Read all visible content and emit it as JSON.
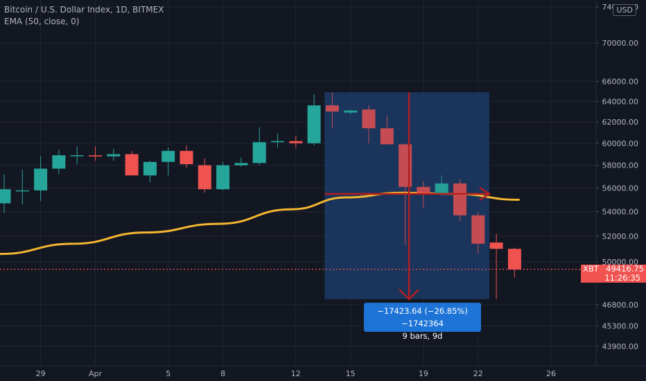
{
  "legend": {
    "symbol": "Bitcoin / U.S. Dollar Index, 1D, BITMEX",
    "indicator": "EMA (50, close, 0)"
  },
  "currency": "USD",
  "last_price": {
    "ticker": "XBT",
    "price": "49416.75",
    "countdown": "11:26:35"
  },
  "measure": {
    "change": "−17423.64 (−26.85%) −1742364",
    "bars": "9 bars, 9d"
  },
  "colors": {
    "background": "#131722",
    "grid": "#232632",
    "up": "#26a69a",
    "down": "#ef5350",
    "ema": "#f5b731",
    "measure_fill": "#1c3a66",
    "arrow": "#b11f1f"
  },
  "chart_data": {
    "type": "candlestick",
    "y_scale": "log",
    "ylim": [
      42600,
      74800
    ],
    "y_ticks": [
      43900,
      45300,
      46800,
      50000,
      52000,
      54000,
      56000,
      58000,
      60000,
      62000,
      64000,
      66000,
      70000,
      74000
    ],
    "y_tick_labels": [
      "43900.00",
      "45300.00",
      "46800.00",
      "50000.00",
      "52000.00",
      "54000.00",
      "56000.00",
      "58000.00",
      "60000.00",
      "62000.00",
      "64000.00",
      "66000.00",
      "70000.00",
      "74000.00"
    ],
    "x_ticks": [
      {
        "label": "29",
        "bar": 2
      },
      {
        "label": "Apr",
        "bar": 5
      },
      {
        "label": "5",
        "bar": 9
      },
      {
        "label": "8",
        "bar": 12
      },
      {
        "label": "12",
        "bar": 16
      },
      {
        "label": "15",
        "bar": 19
      },
      {
        "label": "19",
        "bar": 23
      },
      {
        "label": "22",
        "bar": 26
      },
      {
        "label": "26",
        "bar": 30
      }
    ],
    "candles": [
      {
        "o": 54700,
        "h": 57200,
        "l": 53900,
        "c": 55900
      },
      {
        "o": 55800,
        "h": 57600,
        "l": 54600,
        "c": 55800
      },
      {
        "o": 55800,
        "h": 58800,
        "l": 54900,
        "c": 57700
      },
      {
        "o": 57700,
        "h": 59400,
        "l": 57200,
        "c": 58900
      },
      {
        "o": 58900,
        "h": 59700,
        "l": 58100,
        "c": 58900
      },
      {
        "o": 58900,
        "h": 59700,
        "l": 58400,
        "c": 58800
      },
      {
        "o": 58800,
        "h": 59500,
        "l": 58400,
        "c": 59000
      },
      {
        "o": 59000,
        "h": 59300,
        "l": 57100,
        "c": 57100
      },
      {
        "o": 57100,
        "h": 58400,
        "l": 56500,
        "c": 58300
      },
      {
        "o": 58300,
        "h": 59600,
        "l": 57100,
        "c": 59300
      },
      {
        "o": 59300,
        "h": 59800,
        "l": 57800,
        "c": 58100
      },
      {
        "o": 58000,
        "h": 58600,
        "l": 55600,
        "c": 55900
      },
      {
        "o": 55900,
        "h": 58300,
        "l": 55800,
        "c": 58000
      },
      {
        "o": 58000,
        "h": 58700,
        "l": 57900,
        "c": 58200
      },
      {
        "o": 58200,
        "h": 61500,
        "l": 58000,
        "c": 60100
      },
      {
        "o": 60100,
        "h": 60900,
        "l": 59600,
        "c": 60200
      },
      {
        "o": 60200,
        "h": 60700,
        "l": 59600,
        "c": 60000
      },
      {
        "o": 60000,
        "h": 64700,
        "l": 59800,
        "c": 63600
      },
      {
        "o": 63600,
        "h": 64900,
        "l": 61400,
        "c": 63000
      },
      {
        "o": 62900,
        "h": 63200,
        "l": 62700,
        "c": 63100
      },
      {
        "o": 63200,
        "h": 63600,
        "l": 60000,
        "c": 61400
      },
      {
        "o": 61400,
        "h": 62600,
        "l": 59900,
        "c": 59900
      },
      {
        "o": 59900,
        "h": 60000,
        "l": 51300,
        "c": 56100
      },
      {
        "o": 56100,
        "h": 56600,
        "l": 54300,
        "c": 55500
      },
      {
        "o": 55500,
        "h": 57100,
        "l": 55400,
        "c": 56400
      },
      {
        "o": 56400,
        "h": 56800,
        "l": 53200,
        "c": 53700
      },
      {
        "o": 53700,
        "h": 54000,
        "l": 50600,
        "c": 51400
      },
      {
        "o": 51500,
        "h": 52200,
        "l": 47200,
        "c": 51000
      },
      {
        "o": 51000,
        "h": 51100,
        "l": 48800,
        "c": 49400
      }
    ],
    "ema": {
      "name": "EMA (50, close, 0)",
      "points": [
        [
          0,
          50600
        ],
        [
          4,
          51400
        ],
        [
          8,
          52300
        ],
        [
          12,
          53000
        ],
        [
          16,
          54200
        ],
        [
          19,
          55200
        ],
        [
          22,
          55600
        ],
        [
          25,
          55500
        ],
        [
          28,
          55000
        ]
      ]
    },
    "current_price": 49416.75,
    "measure_range": {
      "from_bar": 18,
      "to_bar": 27,
      "high": 64900,
      "low": 47200,
      "mid": 55500
    }
  }
}
